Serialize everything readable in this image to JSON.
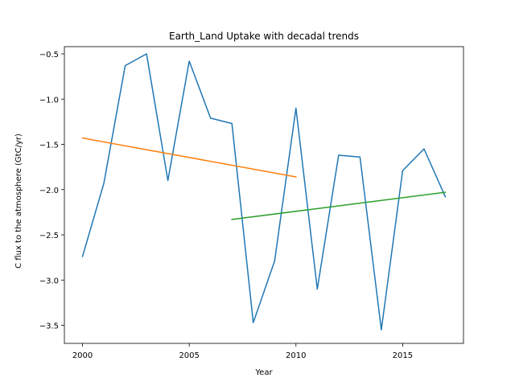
{
  "chart_data": {
    "type": "line",
    "title": "Earth_Land Uptake with decadal trends",
    "xlabel": "Year",
    "ylabel": "C flux to the atmosphere (GtC/yr)",
    "xlim": [
      1999.15,
      2017.85
    ],
    "ylim": [
      -3.7,
      -0.42
    ],
    "xticks": [
      2000,
      2005,
      2010,
      2015
    ],
    "yticks": [
      -3.5,
      -3.0,
      -2.5,
      -2.0,
      -1.5,
      -1.0,
      -0.5
    ],
    "grid": false,
    "legend": "none",
    "series": [
      {
        "color": "#1f77b4",
        "x": [
          2000,
          2001,
          2002,
          2003,
          2004,
          2005,
          2006,
          2007,
          2008,
          2009,
          2010,
          2011,
          2012,
          2013,
          2014,
          2015,
          2016,
          2017
        ],
        "y": [
          -2.74,
          -1.93,
          -0.63,
          -0.5,
          -1.9,
          -0.58,
          -1.21,
          -1.27,
          -3.47,
          -2.79,
          -1.1,
          -3.1,
          -1.62,
          -1.64,
          -3.55,
          -1.79,
          -1.55,
          -2.08
        ]
      },
      {
        "color": "#ff7f0e",
        "x": [
          2000,
          2010
        ],
        "y": [
          -1.43,
          -1.86
        ]
      },
      {
        "color": "#2ca02c",
        "x": [
          2007,
          2017
        ],
        "y": [
          -2.33,
          -2.03
        ]
      }
    ]
  }
}
